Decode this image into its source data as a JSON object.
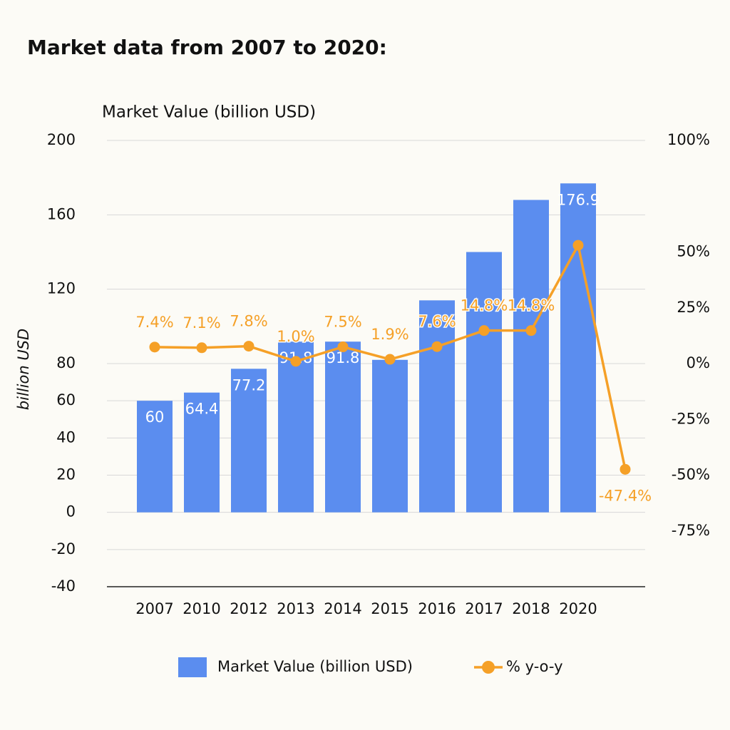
{
  "chart_data": {
    "type": "bar_line",
    "title": "Market data from 2007 to 2020:",
    "subtitle": "Market Value (billion USD)",
    "y_label": "billion USD",
    "categories": [
      "2007",
      "2010",
      "2012",
      "2013",
      "2014",
      "2015",
      "2016",
      "2017",
      "2018",
      "2020",
      null
    ],
    "series": [
      {
        "name": "Market Value (billion USD)",
        "type": "bar",
        "color": "#5b8def",
        "values": [
          60,
          64.4,
          77.2,
          91.8,
          91.8,
          82,
          114,
          140,
          168,
          176.9,
          null
        ],
        "value_labels": [
          "60",
          "64.4",
          "77.2",
          "91.8",
          "91.8",
          null,
          null,
          null,
          null,
          "176.9",
          null
        ]
      },
      {
        "name": "% y-o-y",
        "type": "line",
        "axis": "y2",
        "color": "#f5a027",
        "values": [
          7.4,
          7.1,
          7.8,
          1.0,
          7.5,
          1.9,
          7.6,
          14.8,
          14.8,
          53,
          -47.4
        ],
        "value_labels": [
          "7.4%",
          "7.1%",
          "7.8%",
          "1.0%",
          "7.5%",
          "1.9%",
          "7.6%",
          "14.8%",
          "14.8%",
          null,
          "-47.4%"
        ]
      }
    ],
    "ylim": [
      -40,
      200
    ],
    "yticks": [
      200,
      160,
      120,
      80,
      60,
      40,
      20,
      0,
      -20,
      -40
    ],
    "y2lim": [
      -100,
      100
    ],
    "y2ticks": [
      {
        "value": 100,
        "label": "100%"
      },
      {
        "value": 50,
        "label": "50%"
      },
      {
        "value": 25,
        "label": "25%"
      },
      {
        "value": 0,
        "label": "0%"
      },
      {
        "value": -25,
        "label": "-25%"
      },
      {
        "value": -50,
        "label": "-50%"
      },
      {
        "value": -75,
        "label": "-75%"
      }
    ],
    "grid": true
  }
}
